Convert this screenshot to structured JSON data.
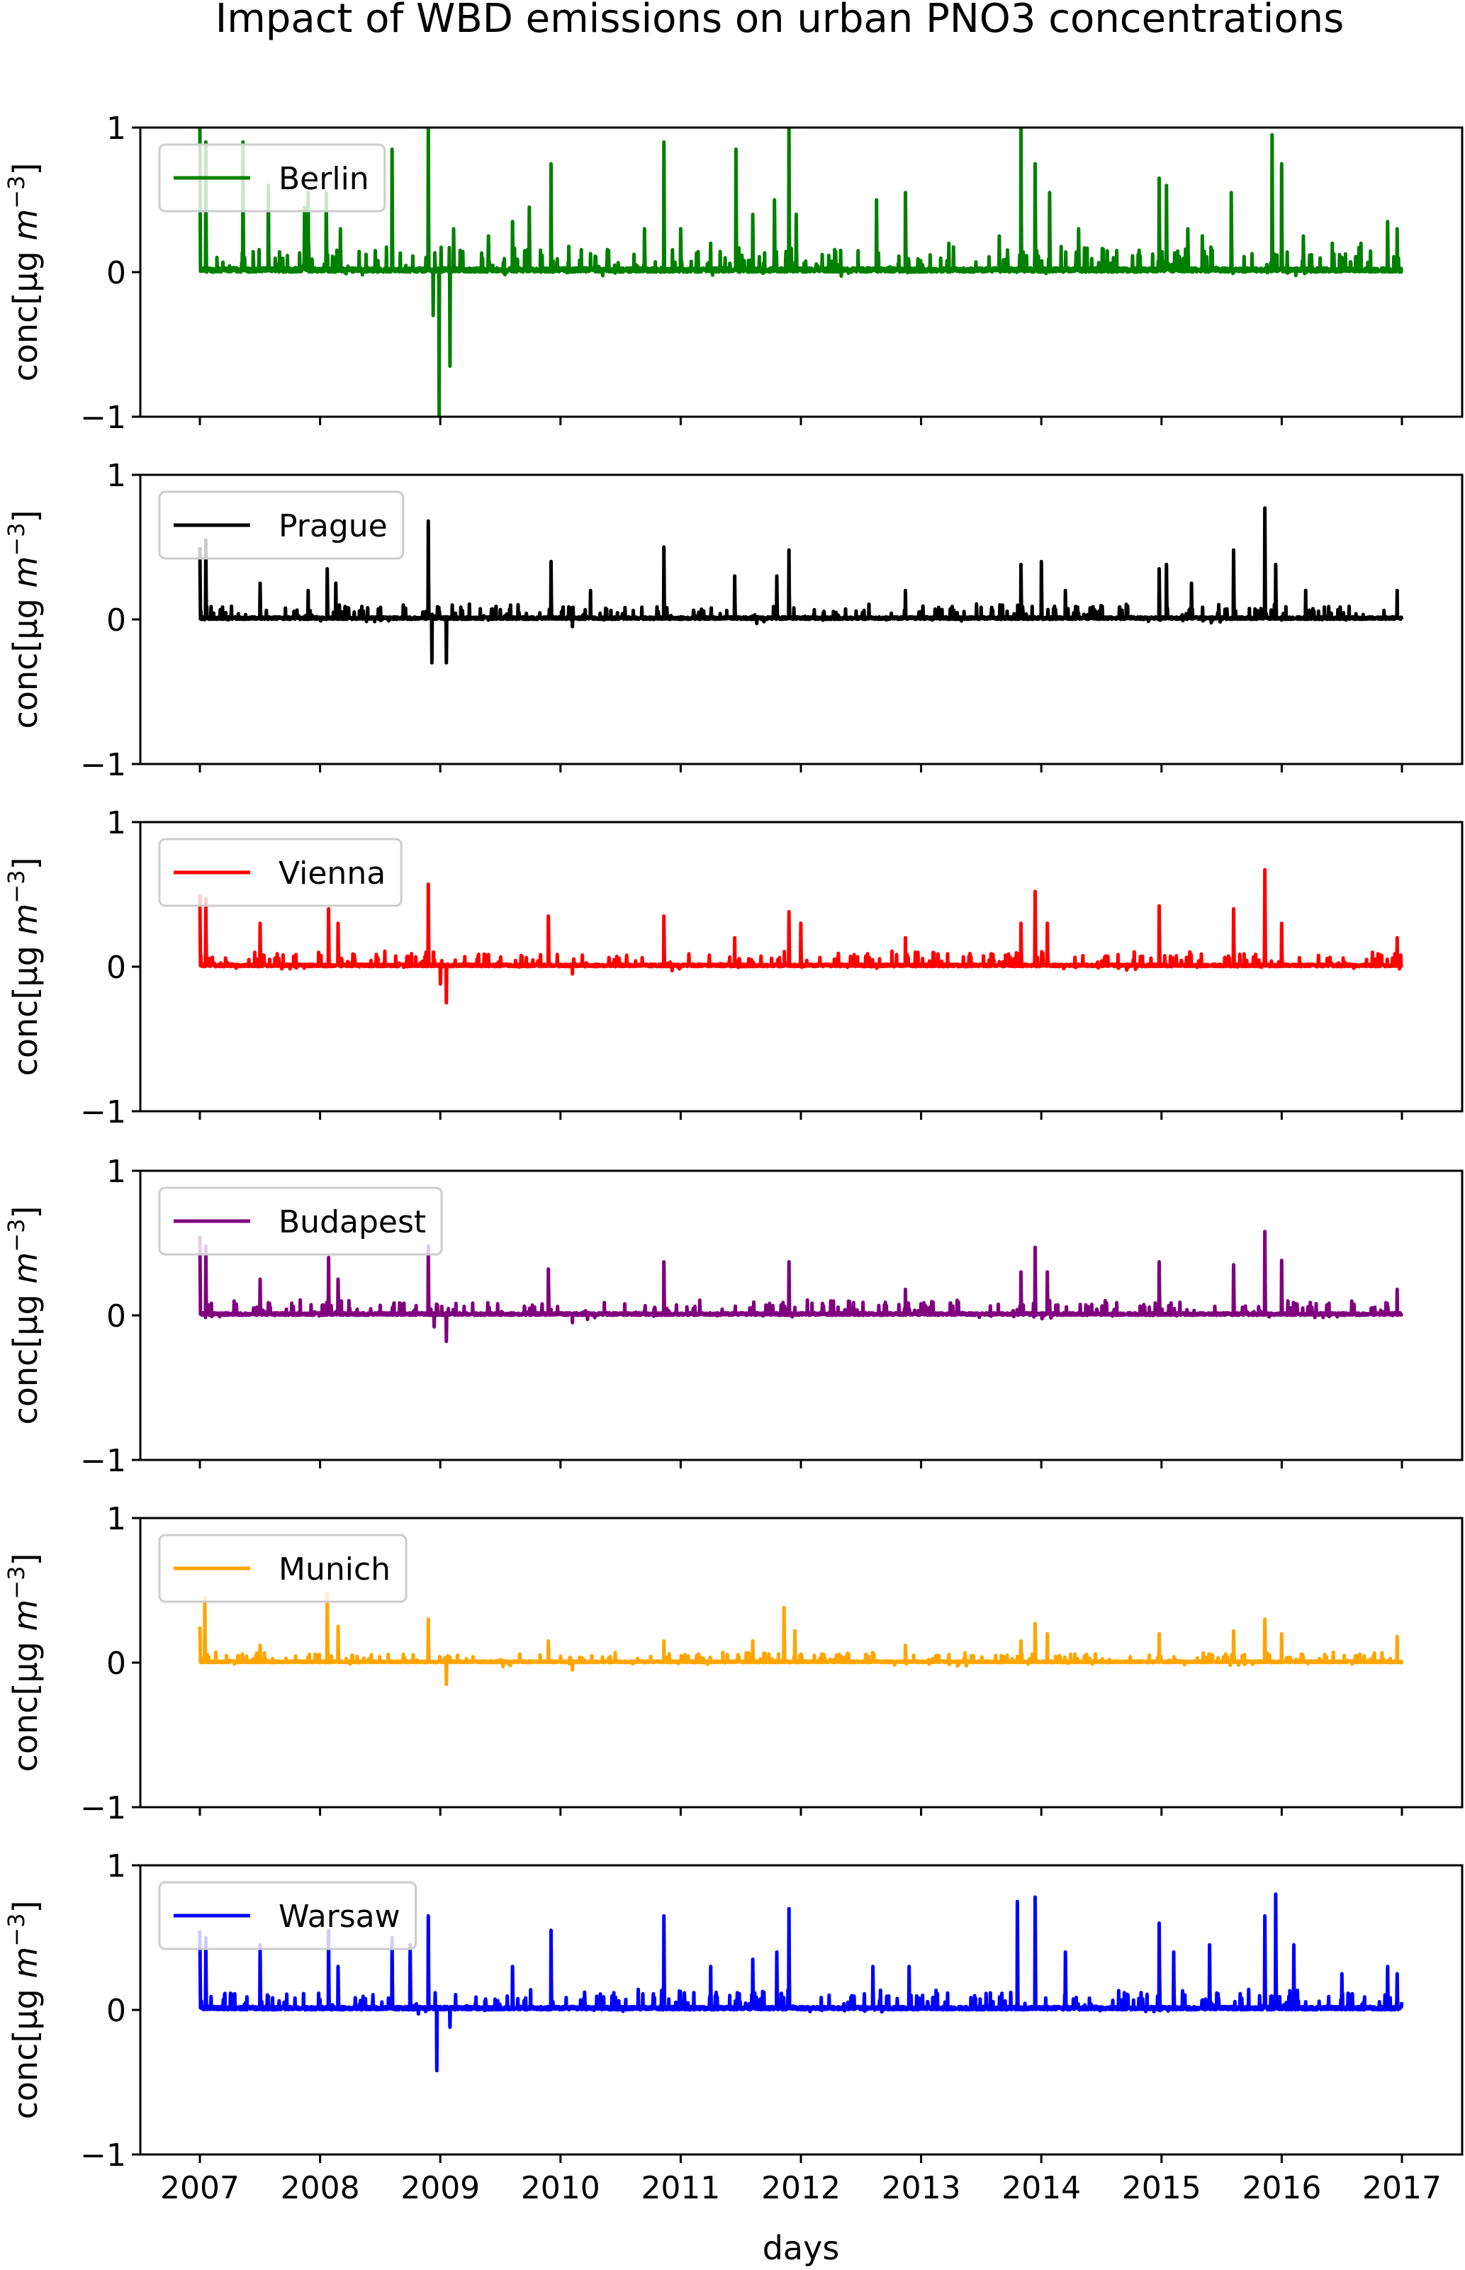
{
  "chart_data": {
    "type": "line",
    "title": "Impact of WBD emissions on urban PNO3 concentrations",
    "xlabel": "days",
    "ylabel": "conc[µg m⁻³]",
    "ylabel_parts": {
      "main": "conc[µg ",
      "unit": "m",
      "exp": "−3",
      "close": "]"
    },
    "xlim": [
      2007,
      2017
    ],
    "ylim": [
      -1,
      1
    ],
    "xticks": [
      "2007",
      "2008",
      "2009",
      "2010",
      "2011",
      "2012",
      "2013",
      "2014",
      "2015",
      "2016",
      "2017"
    ],
    "yticks": [
      "−1",
      "0",
      "1"
    ],
    "legend_placement": "upper-left",
    "grid": false,
    "series": [
      {
        "name": "Berlin",
        "color": "#008000",
        "noise": 0.05,
        "peaks": [
          [
            2007.0,
            1.0
          ],
          [
            2007.05,
            0.9
          ],
          [
            2007.36,
            0.9
          ],
          [
            2007.57,
            0.6
          ],
          [
            2007.87,
            0.45
          ],
          [
            2007.9,
            0.55
          ],
          [
            2008.05,
            0.55
          ],
          [
            2008.17,
            0.3
          ],
          [
            2008.6,
            0.85
          ],
          [
            2008.9,
            1.0
          ],
          [
            2008.94,
            -0.3
          ],
          [
            2008.99,
            -1.0
          ],
          [
            2009.08,
            -0.65
          ],
          [
            2009.11,
            0.3
          ],
          [
            2009.4,
            0.25
          ],
          [
            2009.6,
            0.35
          ],
          [
            2009.74,
            0.45
          ],
          [
            2009.92,
            0.75
          ],
          [
            2010.4,
            0.15
          ],
          [
            2010.7,
            0.3
          ],
          [
            2010.86,
            0.9
          ],
          [
            2011.0,
            0.3
          ],
          [
            2011.25,
            0.2
          ],
          [
            2011.46,
            0.85
          ],
          [
            2011.6,
            0.4
          ],
          [
            2011.78,
            0.5
          ],
          [
            2011.9,
            1.0
          ],
          [
            2011.96,
            0.4
          ],
          [
            2012.33,
            0.15
          ],
          [
            2012.63,
            0.5
          ],
          [
            2012.87,
            0.55
          ],
          [
            2013.23,
            0.2
          ],
          [
            2013.65,
            0.25
          ],
          [
            2013.83,
            1.0
          ],
          [
            2013.95,
            0.75
          ],
          [
            2014.07,
            0.55
          ],
          [
            2014.31,
            0.3
          ],
          [
            2014.6,
            0.1
          ],
          [
            2014.98,
            0.65
          ],
          [
            2015.04,
            0.6
          ],
          [
            2015.22,
            0.3
          ],
          [
            2015.34,
            0.25
          ],
          [
            2015.58,
            0.55
          ],
          [
            2015.92,
            0.95
          ],
          [
            2016.0,
            0.75
          ],
          [
            2016.18,
            0.25
          ],
          [
            2016.42,
            0.2
          ],
          [
            2016.66,
            0.2
          ],
          [
            2016.88,
            0.35
          ],
          [
            2016.96,
            0.3
          ]
        ]
      },
      {
        "name": "Prague",
        "color": "#000000",
        "noise": 0.03,
        "peaks": [
          [
            2007.0,
            0.5
          ],
          [
            2007.05,
            0.55
          ],
          [
            2007.5,
            0.25
          ],
          [
            2007.9,
            0.2
          ],
          [
            2008.06,
            0.35
          ],
          [
            2008.13,
            0.25
          ],
          [
            2008.9,
            0.68
          ],
          [
            2008.93,
            -0.3
          ],
          [
            2009.05,
            -0.3
          ],
          [
            2009.1,
            0.1
          ],
          [
            2009.92,
            0.4
          ],
          [
            2010.1,
            -0.05
          ],
          [
            2010.25,
            0.2
          ],
          [
            2010.86,
            0.5
          ],
          [
            2011.45,
            0.3
          ],
          [
            2011.8,
            0.3
          ],
          [
            2011.9,
            0.48
          ],
          [
            2012.87,
            0.2
          ],
          [
            2013.83,
            0.38
          ],
          [
            2014.0,
            0.4
          ],
          [
            2014.2,
            0.2
          ],
          [
            2014.98,
            0.35
          ],
          [
            2015.04,
            0.38
          ],
          [
            2015.25,
            0.25
          ],
          [
            2015.6,
            0.48
          ],
          [
            2015.86,
            0.77
          ],
          [
            2015.95,
            0.38
          ],
          [
            2016.2,
            0.2
          ],
          [
            2016.96,
            0.2
          ]
        ]
      },
      {
        "name": "Vienna",
        "color": "#ff0000",
        "noise": 0.03,
        "peaks": [
          [
            2007.0,
            0.5
          ],
          [
            2007.05,
            0.47
          ],
          [
            2007.5,
            0.3
          ],
          [
            2008.07,
            0.4
          ],
          [
            2008.15,
            0.3
          ],
          [
            2008.9,
            0.57
          ],
          [
            2009.0,
            -0.12
          ],
          [
            2009.05,
            -0.25
          ],
          [
            2009.9,
            0.35
          ],
          [
            2010.1,
            -0.05
          ],
          [
            2010.86,
            0.35
          ],
          [
            2011.45,
            0.2
          ],
          [
            2011.9,
            0.38
          ],
          [
            2012.0,
            0.3
          ],
          [
            2012.87,
            0.2
          ],
          [
            2013.83,
            0.3
          ],
          [
            2013.95,
            0.52
          ],
          [
            2014.05,
            0.3
          ],
          [
            2014.98,
            0.42
          ],
          [
            2015.6,
            0.4
          ],
          [
            2015.86,
            0.67
          ],
          [
            2016.0,
            0.3
          ],
          [
            2016.96,
            0.2
          ]
        ]
      },
      {
        "name": "Budapest",
        "color": "#800080",
        "noise": 0.03,
        "peaks": [
          [
            2007.0,
            0.55
          ],
          [
            2007.05,
            0.48
          ],
          [
            2007.5,
            0.25
          ],
          [
            2008.07,
            0.4
          ],
          [
            2008.15,
            0.25
          ],
          [
            2008.9,
            0.48
          ],
          [
            2008.95,
            -0.08
          ],
          [
            2009.05,
            -0.18
          ],
          [
            2009.9,
            0.32
          ],
          [
            2010.1,
            -0.05
          ],
          [
            2010.86,
            0.37
          ],
          [
            2011.9,
            0.37
          ],
          [
            2012.87,
            0.18
          ],
          [
            2013.83,
            0.3
          ],
          [
            2013.95,
            0.47
          ],
          [
            2014.05,
            0.3
          ],
          [
            2014.98,
            0.37
          ],
          [
            2015.6,
            0.35
          ],
          [
            2015.86,
            0.58
          ],
          [
            2016.0,
            0.38
          ],
          [
            2016.96,
            0.18
          ]
        ]
      },
      {
        "name": "Munich",
        "color": "#ffa500",
        "noise": 0.02,
        "peaks": [
          [
            2007.0,
            0.25
          ],
          [
            2007.04,
            0.45
          ],
          [
            2007.5,
            0.12
          ],
          [
            2008.06,
            0.48
          ],
          [
            2008.15,
            0.25
          ],
          [
            2008.9,
            0.3
          ],
          [
            2009.05,
            -0.15
          ],
          [
            2009.9,
            0.15
          ],
          [
            2010.1,
            -0.05
          ],
          [
            2010.86,
            0.15
          ],
          [
            2011.6,
            0.15
          ],
          [
            2011.86,
            0.38
          ],
          [
            2011.95,
            0.22
          ],
          [
            2012.87,
            0.12
          ],
          [
            2013.83,
            0.15
          ],
          [
            2013.95,
            0.27
          ],
          [
            2014.05,
            0.2
          ],
          [
            2014.98,
            0.2
          ],
          [
            2015.6,
            0.22
          ],
          [
            2015.86,
            0.3
          ],
          [
            2016.0,
            0.2
          ],
          [
            2016.96,
            0.18
          ]
        ]
      },
      {
        "name": "Warsaw",
        "color": "#0000ff",
        "noise": 0.04,
        "peaks": [
          [
            2007.0,
            0.55
          ],
          [
            2007.05,
            0.5
          ],
          [
            2007.5,
            0.45
          ],
          [
            2008.07,
            0.55
          ],
          [
            2008.15,
            0.3
          ],
          [
            2008.6,
            0.5
          ],
          [
            2008.75,
            0.45
          ],
          [
            2008.9,
            0.65
          ],
          [
            2008.97,
            -0.42
          ],
          [
            2009.08,
            -0.12
          ],
          [
            2009.6,
            0.3
          ],
          [
            2009.92,
            0.55
          ],
          [
            2010.86,
            0.65
          ],
          [
            2011.25,
            0.3
          ],
          [
            2011.6,
            0.35
          ],
          [
            2011.8,
            0.4
          ],
          [
            2011.9,
            0.7
          ],
          [
            2012.6,
            0.3
          ],
          [
            2012.9,
            0.3
          ],
          [
            2013.8,
            0.75
          ],
          [
            2013.95,
            0.78
          ],
          [
            2014.2,
            0.4
          ],
          [
            2014.98,
            0.6
          ],
          [
            2015.1,
            0.4
          ],
          [
            2015.4,
            0.45
          ],
          [
            2015.86,
            0.65
          ],
          [
            2015.95,
            0.8
          ],
          [
            2016.1,
            0.45
          ],
          [
            2016.5,
            0.25
          ],
          [
            2016.88,
            0.3
          ],
          [
            2016.96,
            0.25
          ]
        ]
      }
    ]
  }
}
